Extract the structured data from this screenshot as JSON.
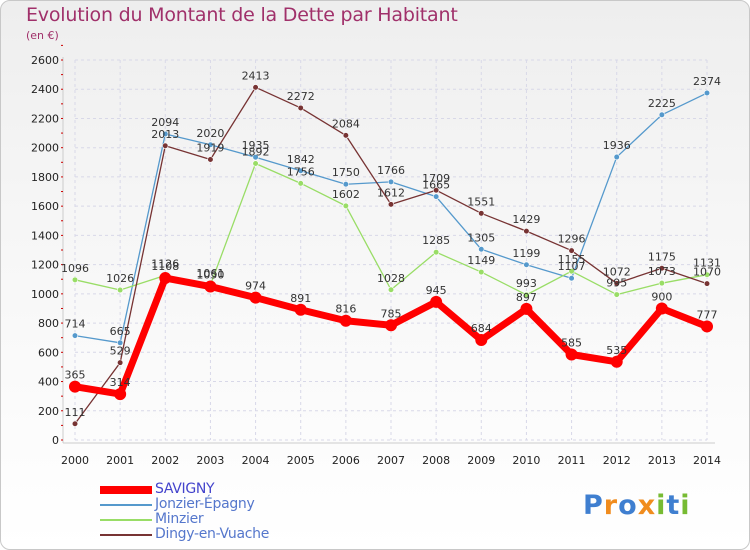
{
  "chart_data": {
    "type": "line",
    "title": "Evolution du Montant de la Dette par Habitant",
    "ylabel": "(en €)",
    "xlabel": "",
    "x": [
      2000,
      2001,
      2002,
      2003,
      2004,
      2005,
      2006,
      2007,
      2008,
      2009,
      2010,
      2011,
      2012,
      2013,
      2014
    ],
    "ylim": [
      0,
      2600
    ],
    "ytick_step": 200,
    "grid": true,
    "series": [
      {
        "name": "SAVIGNY",
        "color": "#ff0000",
        "values": [
          365,
          314,
          1108,
          1050,
          974,
          891,
          816,
          785,
          945,
          684,
          897,
          585,
          535,
          900,
          777
        ]
      },
      {
        "name": "Jonzier-Épagny",
        "color": "#5599cc",
        "values": [
          714,
          665,
          2094,
          2020,
          1935,
          1842,
          1750,
          1766,
          1665,
          1305,
          1199,
          1107,
          1936,
          2225,
          2374
        ]
      },
      {
        "name": "Minzier",
        "color": "#99dd66",
        "values": [
          1096,
          1026,
          1126,
          1061,
          1892,
          1756,
          1602,
          1028,
          1285,
          1149,
          993,
          1155,
          995,
          1073,
          1131
        ]
      },
      {
        "name": "Dingy-en-Vuache",
        "color": "#773333",
        "values": [
          111,
          529,
          2013,
          1919,
          2413,
          2272,
          2084,
          1612,
          1709,
          1551,
          1429,
          1296,
          1072,
          1175,
          1070
        ]
      }
    ],
    "legend_position": "bottom-left"
  },
  "logo": {
    "letters": [
      "P",
      "r",
      "o",
      "x",
      "i",
      "t",
      "i"
    ],
    "colors": [
      "#3f7fd0",
      "#f08c1e",
      "#3f7fd0",
      "#f08c1e",
      "#77bb33",
      "#3f7fd0",
      "#77bb33"
    ]
  }
}
